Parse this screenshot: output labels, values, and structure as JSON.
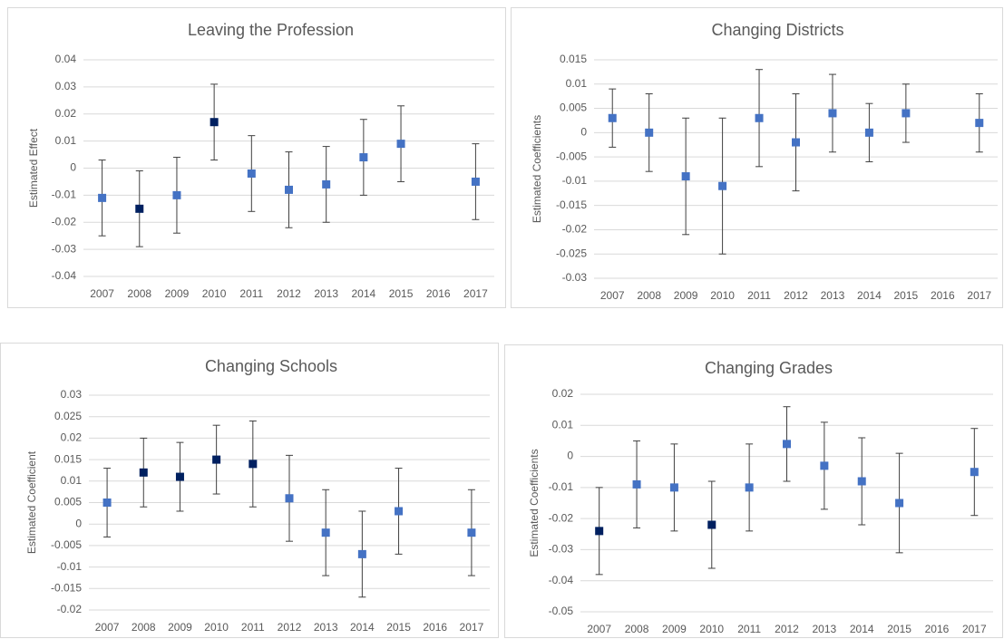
{
  "chart_data": [
    {
      "type": "errorbar",
      "title": "Leaving the Profession",
      "y_label": "Estimated Effect",
      "categories": [
        "2007",
        "2008",
        "2009",
        "2010",
        "2011",
        "2012",
        "2013",
        "2014",
        "2015",
        "2016",
        "2017"
      ],
      "values": [
        -0.011,
        -0.015,
        -0.01,
        0.017,
        -0.002,
        -0.008,
        -0.006,
        0.004,
        0.009,
        null,
        -0.005
      ],
      "errors": [
        0.014,
        0.014,
        0.014,
        0.014,
        0.014,
        0.014,
        0.014,
        0.014,
        0.014,
        null,
        0.014
      ],
      "point_colors": [
        "#4472c4",
        "#002060",
        "#4472c4",
        "#002060",
        "#4472c4",
        "#4472c4",
        "#4472c4",
        "#4472c4",
        "#4472c4",
        null,
        "#4472c4"
      ],
      "ylim": [
        -0.04,
        0.04
      ],
      "yticks": [
        -0.04,
        -0.03,
        -0.02,
        -0.01,
        0,
        0.01,
        0.02,
        0.03,
        0.04
      ],
      "grid": true
    },
    {
      "type": "errorbar",
      "title": "Changing Districts",
      "y_label": "Estimated Coefficients",
      "categories": [
        "2007",
        "2008",
        "2009",
        "2010",
        "2011",
        "2012",
        "2013",
        "2014",
        "2015",
        "2016",
        "2017"
      ],
      "values": [
        0.003,
        0,
        -0.009,
        -0.011,
        0.003,
        -0.002,
        0.004,
        0,
        0.004,
        null,
        0.002
      ],
      "errors": [
        0.006,
        0.008,
        0.012,
        0.014,
        0.01,
        0.01,
        0.008,
        0.006,
        0.006,
        null,
        0.006
      ],
      "point_colors": [
        "#4472c4",
        "#4472c4",
        "#4472c4",
        "#4472c4",
        "#4472c4",
        "#4472c4",
        "#4472c4",
        "#4472c4",
        "#4472c4",
        null,
        "#4472c4"
      ],
      "ylim": [
        -0.03,
        0.015
      ],
      "yticks": [
        -0.03,
        -0.025,
        -0.02,
        -0.015,
        -0.01,
        -0.005,
        0,
        0.005,
        0.01,
        0.015
      ],
      "grid": true
    },
    {
      "type": "errorbar",
      "title": "Changing Schools",
      "y_label": "Estimated Coefficient",
      "categories": [
        "2007",
        "2008",
        "2009",
        "2010",
        "2011",
        "2012",
        "2013",
        "2014",
        "2015",
        "2016",
        "2017"
      ],
      "values": [
        0.005,
        0.012,
        0.011,
        0.015,
        0.014,
        0.006,
        -0.002,
        -0.007,
        0.003,
        null,
        -0.002
      ],
      "errors": [
        0.008,
        0.008,
        0.008,
        0.008,
        0.01,
        0.01,
        0.01,
        0.01,
        0.01,
        null,
        0.01
      ],
      "point_colors": [
        "#4472c4",
        "#002060",
        "#002060",
        "#002060",
        "#002060",
        "#4472c4",
        "#4472c4",
        "#4472c4",
        "#4472c4",
        null,
        "#4472c4"
      ],
      "ylim": [
        -0.02,
        0.03
      ],
      "yticks": [
        -0.02,
        -0.015,
        -0.01,
        -0.005,
        0,
        0.005,
        0.01,
        0.015,
        0.02,
        0.025,
        0.03
      ],
      "grid": true
    },
    {
      "type": "errorbar",
      "title": "Changing Grades",
      "y_label": "Estimated Coefficients",
      "categories": [
        "2007",
        "2008",
        "2009",
        "2010",
        "2011",
        "2012",
        "2013",
        "2014",
        "2015",
        "2016",
        "2017"
      ],
      "values": [
        -0.024,
        -0.009,
        -0.01,
        -0.022,
        -0.01,
        0.004,
        -0.003,
        -0.008,
        -0.015,
        null,
        -0.005
      ],
      "errors": [
        0.014,
        0.014,
        0.014,
        0.014,
        0.014,
        0.012,
        0.014,
        0.014,
        0.016,
        null,
        0.014
      ],
      "point_colors": [
        "#002060",
        "#4472c4",
        "#4472c4",
        "#002060",
        "#4472c4",
        "#4472c4",
        "#4472c4",
        "#4472c4",
        "#4472c4",
        null,
        "#4472c4"
      ],
      "ylim": [
        -0.05,
        0.02
      ],
      "yticks": [
        -0.05,
        -0.04,
        -0.03,
        -0.02,
        -0.01,
        0,
        0.01,
        0.02
      ],
      "grid": true
    }
  ]
}
